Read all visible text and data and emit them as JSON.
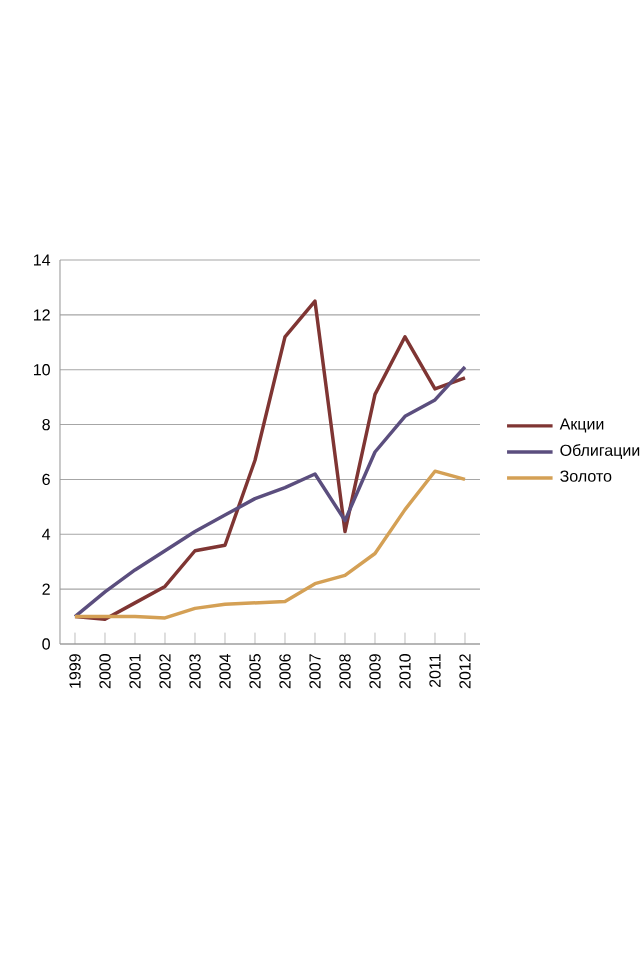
{
  "chart_data": {
    "type": "line",
    "categories": [
      "1999",
      "2000",
      "2001",
      "2002",
      "2003",
      "2004",
      "2005",
      "2006",
      "2007",
      "2008",
      "2009",
      "2010",
      "2011",
      "2012"
    ],
    "series": [
      {
        "name": "Акции",
        "color": "#7f3533",
        "values": [
          1.0,
          0.9,
          1.5,
          2.1,
          3.4,
          3.6,
          6.7,
          11.2,
          12.5,
          4.1,
          9.1,
          11.2,
          9.3,
          9.7
        ]
      },
      {
        "name": "Облигации",
        "color": "#5b4e7e",
        "values": [
          1.0,
          1.9,
          2.7,
          3.4,
          4.1,
          4.7,
          5.3,
          5.7,
          6.2,
          4.5,
          7.0,
          8.3,
          8.9,
          10.1
        ]
      },
      {
        "name": "Золото",
        "color": "#d4a055",
        "values": [
          1.0,
          1.0,
          1.0,
          0.95,
          1.3,
          1.45,
          1.5,
          1.55,
          2.2,
          2.5,
          3.3,
          4.9,
          6.3,
          6.0
        ]
      }
    ],
    "ylim": [
      0,
      14
    ],
    "yticks": [
      0,
      2,
      4,
      6,
      8,
      10,
      12,
      14
    ],
    "grid": "y",
    "legend": "right"
  }
}
